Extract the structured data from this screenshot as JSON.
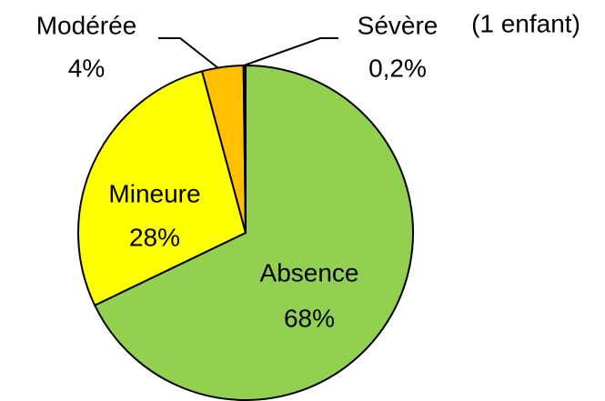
{
  "chart_data": {
    "type": "pie",
    "categories": [
      "Absence",
      "Mineure",
      "Modérée",
      "Sévère"
    ],
    "values": [
      68,
      28,
      4,
      0.2
    ],
    "value_labels": [
      "68%",
      "28%",
      "4%",
      "0,2%"
    ],
    "colors": [
      "#92d050",
      "#ffff00",
      "#ffc000",
      "#c00000"
    ],
    "annotations": [
      "(1 enfant)"
    ]
  }
}
